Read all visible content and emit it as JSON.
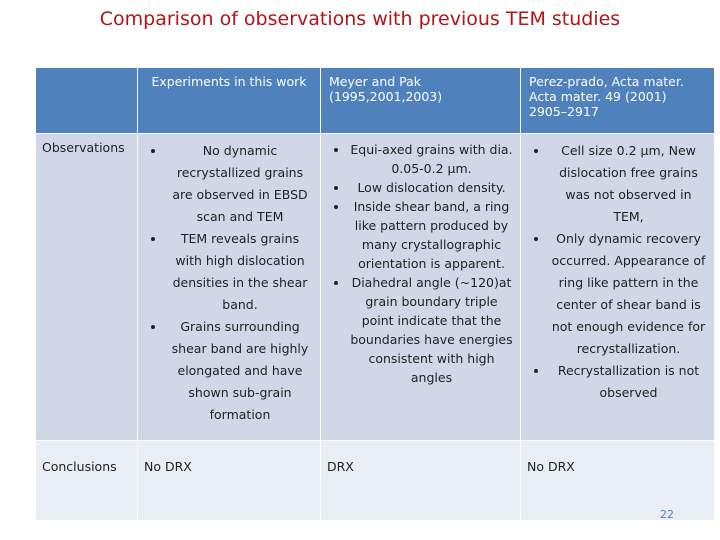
{
  "title": "Comparison of observations with previous TEM studies",
  "table": {
    "header": [
      "Experiments in this work",
      "Meyer and Pak (1995,2001,2003)",
      "Perez-prado, Acta mater. Acta mater. 49 (2001) 2905–2917"
    ],
    "rows": [
      {
        "label": "Observations",
        "cells": [
          [
            "No dynamic recrystallized grains are observed in EBSD scan and TEM",
            "TEM reveals grains with high dislocation densities in the shear band.",
            "Grains surrounding shear band are highly elongated and have shown sub-grain formation"
          ],
          [
            "Equi-axed grains with dia. 0.05-0.2 µm.",
            "Low dislocation density.",
            "Inside shear band, a ring like pattern produced by many crystallographic orientation is apparent.",
            "Diahedral angle (~120)at grain boundary triple point indicate that the boundaries have energies consistent with high angles"
          ],
          [
            "Cell size 0.2 µm, New dislocation free grains was not observed in TEM,",
            "Only dynamic recovery occurred. Appearance of ring like pattern in the center of shear band is not enough evidence for recrystallization.",
            "Recrystallization is not observed"
          ]
        ]
      },
      {
        "label": "Conclusions",
        "cells": [
          "No DRX",
          "DRX",
          "No DRX"
        ]
      }
    ]
  },
  "page_number": "22"
}
